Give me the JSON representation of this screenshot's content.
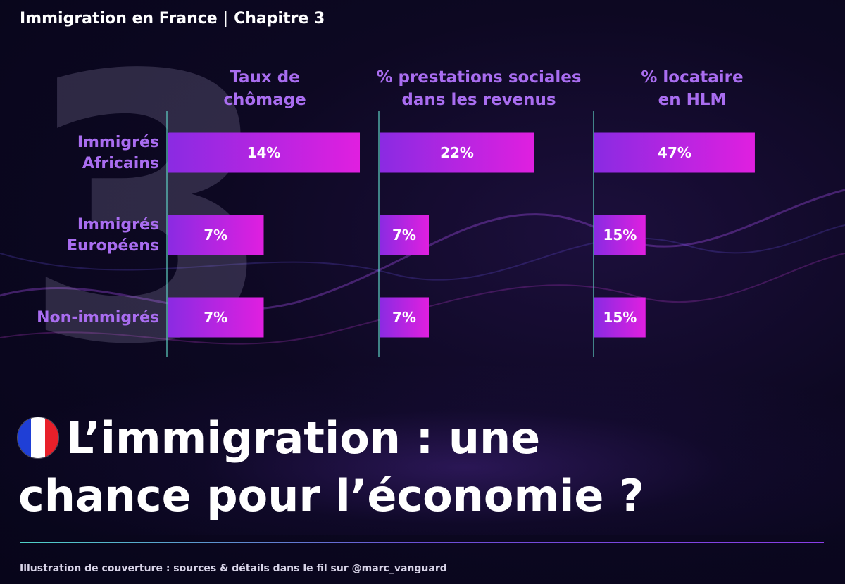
{
  "header": {
    "section": "Immigration en France",
    "separator": "|",
    "chapter": "Chapitre 3"
  },
  "big_number": "3",
  "title": {
    "line1": "L’immigration : une",
    "line2": "chance pour l’économie ?"
  },
  "flag": {
    "icon": "france-flag-icon",
    "colors": [
      "#1f3fd6",
      "#ffffff",
      "#e8202a"
    ]
  },
  "footer": {
    "text": "Illustration de couverture : sources & détails dans le fil sur @marc_vanguard"
  },
  "colors": {
    "bar_start": "#8a2be2",
    "bar_end": "#e01fe0",
    "label": "#a96df0",
    "axis": "#5fd3c4"
  },
  "chart_data": {
    "type": "bar",
    "orientation": "horizontal",
    "categories": [
      "Immigrés Africains",
      "Immigrés Européens",
      "Non-immigrés"
    ],
    "category_lines": [
      [
        "Immigrés",
        "Africains"
      ],
      [
        "Immigrés",
        "Européens"
      ],
      [
        "Non-immigrés"
      ]
    ],
    "series": [
      {
        "name": "Taux de chômage",
        "title_lines": [
          "Taux de",
          "chômage"
        ],
        "values": [
          14,
          7,
          7
        ],
        "labels": [
          "14%",
          "7%",
          "7%"
        ]
      },
      {
        "name": "% prestations sociales dans les revenus",
        "title_lines": [
          "% prestations sociales",
          "dans les revenus"
        ],
        "values": [
          22,
          7,
          7
        ],
        "labels": [
          "22%",
          "7%",
          "7%"
        ]
      },
      {
        "name": "% locataire en HLM",
        "title_lines": [
          "% locataire",
          "en HLM"
        ],
        "values": [
          47,
          15,
          15
        ],
        "labels": [
          "47%",
          "15%",
          "15%"
        ]
      }
    ],
    "grid": false
  }
}
